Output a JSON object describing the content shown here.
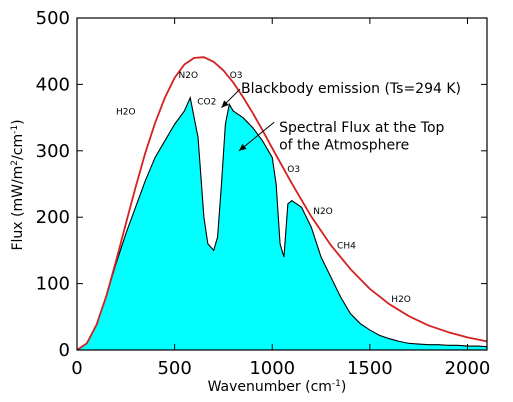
{
  "chart_data": {
    "type": "area",
    "xlabel_main": "Wavenumber (cm",
    "xlabel_sup": "-1",
    "xlabel_end": ")",
    "ylabel_main": "Flux (mW/m",
    "ylabel_sup1": "2",
    "ylabel_mid": "/cm",
    "ylabel_sup2": "-1",
    "ylabel_end": ")",
    "xlim": [
      0,
      2100
    ],
    "ylim": [
      0,
      500
    ],
    "xticks": [
      0,
      500,
      1000,
      1500,
      2000
    ],
    "yticks": [
      0,
      100,
      200,
      300,
      400,
      500
    ],
    "xtick_labels": [
      "0",
      "500",
      "1000",
      "1500",
      "2000"
    ],
    "ytick_labels": [
      "0",
      "100",
      "200",
      "300",
      "400",
      "500"
    ],
    "colors": {
      "blackbody": "#d42020",
      "flux_fill": "#00ffff",
      "flux_line": "#000000"
    },
    "series": [
      {
        "name": "Blackbody emission (Ts=294 K)",
        "type": "line",
        "x": [
          0,
          50,
          100,
          150,
          200,
          250,
          300,
          350,
          400,
          450,
          500,
          550,
          600,
          650,
          700,
          750,
          800,
          850,
          900,
          950,
          1000,
          1100,
          1200,
          1300,
          1400,
          1500,
          1600,
          1700,
          1800,
          1900,
          2000,
          2100
        ],
        "y": [
          0,
          10,
          38,
          81,
          134,
          190,
          245,
          297,
          342,
          380,
          410,
          430,
          440,
          441,
          434,
          421,
          403,
          381,
          357,
          331,
          304,
          251,
          201,
          158,
          122,
          92,
          69,
          51,
          37,
          27,
          19,
          13
        ]
      },
      {
        "name": "Spectral Flux at the Top of the Atmosphere",
        "type": "area",
        "x": [
          0,
          50,
          100,
          150,
          200,
          250,
          300,
          350,
          400,
          450,
          500,
          550,
          580,
          620,
          650,
          670,
          700,
          720,
          740,
          760,
          780,
          800,
          850,
          900,
          950,
          1000,
          1020,
          1040,
          1060,
          1080,
          1100,
          1150,
          1200,
          1250,
          1300,
          1350,
          1400,
          1450,
          1500,
          1550,
          1600,
          1650,
          1700,
          1750,
          1800,
          1850,
          1900,
          1950,
          2000,
          2050,
          2100
        ],
        "y": [
          0,
          10,
          38,
          81,
          130,
          175,
          215,
          255,
          290,
          315,
          340,
          360,
          380,
          320,
          200,
          160,
          150,
          170,
          250,
          340,
          370,
          360,
          350,
          335,
          315,
          290,
          250,
          160,
          140,
          220,
          225,
          215,
          185,
          140,
          110,
          80,
          55,
          40,
          30,
          22,
          17,
          13,
          10,
          9,
          8,
          8,
          7,
          7,
          6,
          6,
          5
        ]
      }
    ],
    "annotations": [
      {
        "text": "H2O",
        "x": 250,
        "y": 355,
        "size": "small"
      },
      {
        "text": "N2O",
        "x": 570,
        "y": 410,
        "size": "small"
      },
      {
        "text": "O3",
        "x": 815,
        "y": 410,
        "size": "small"
      },
      {
        "text": "CO2",
        "x": 665,
        "y": 370,
        "size": "small"
      },
      {
        "text": "O3",
        "x": 1110,
        "y": 268,
        "size": "small"
      },
      {
        "text": "N2O",
        "x": 1260,
        "y": 205,
        "size": "small"
      },
      {
        "text": "CH4",
        "x": 1380,
        "y": 153,
        "size": "small"
      },
      {
        "text": "H2O",
        "x": 1660,
        "y": 72,
        "size": "small"
      },
      {
        "text": "Blackbody emission (Ts=294 K)",
        "x": 840,
        "y": 387,
        "size": "large",
        "anchor": "start"
      },
      {
        "text": "Spectral Flux at the Top",
        "x": 1035,
        "y": 328,
        "size": "large",
        "anchor": "start"
      },
      {
        "text": "of the Atmosphere",
        "x": 1035,
        "y": 302,
        "size": "large",
        "anchor": "start"
      }
    ],
    "arrows": [
      {
        "label": "blackbody-arrow",
        "from": [
          835,
          393
        ],
        "to": [
          740,
          365
        ]
      },
      {
        "label": "flux-arrow",
        "from": [
          1010,
          343
        ],
        "to": [
          830,
          300
        ]
      }
    ]
  }
}
